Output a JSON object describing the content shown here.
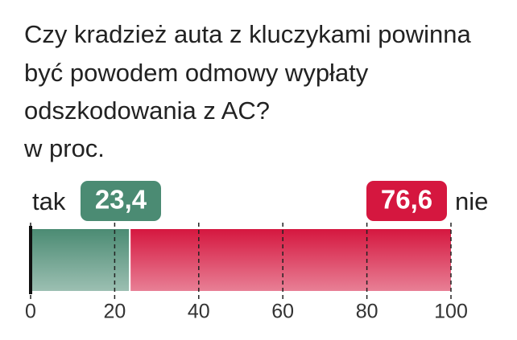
{
  "chart_data": {
    "type": "stacked-bar",
    "title": [
      "Czy kradzież auta z kluczykami powinna",
      "być powodem odmowy wypłaty",
      "odszkodowania z AC?"
    ],
    "subtitle": "w proc.",
    "series": [
      {
        "name": "tak",
        "color": "#4b8b73",
        "values": [
          23.4
        ],
        "value_labels": [
          "23,4"
        ]
      },
      {
        "name": "nie",
        "color": "#d5173f",
        "values": [
          76.6
        ],
        "value_labels": [
          "76,6"
        ]
      }
    ],
    "xlim": [
      0,
      100
    ],
    "xticks": [
      0,
      20,
      40,
      60,
      80,
      100
    ],
    "grid": true
  }
}
